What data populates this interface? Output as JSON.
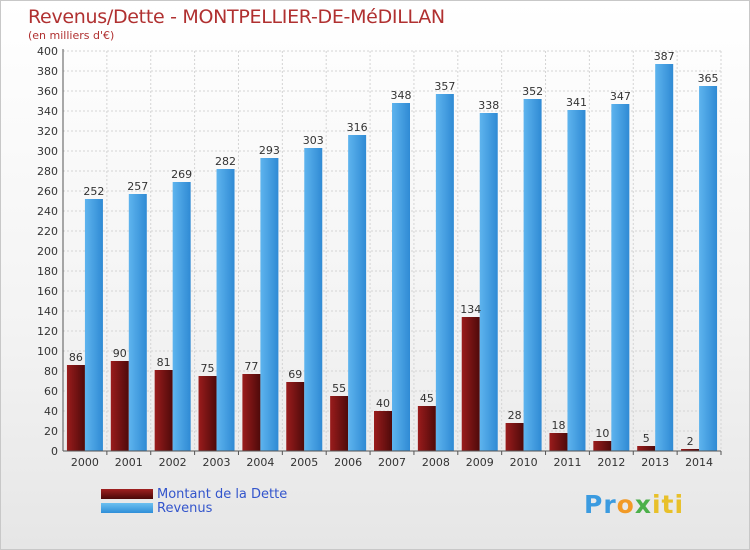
{
  "title": "Revenus/Dette - MONTPELLIER-DE-MéDILLAN",
  "subtitle": "(en milliers d'€)",
  "legend": {
    "debt_label": "Montant de la Dette",
    "revenue_label": "Revenus"
  },
  "logo": {
    "p1": "Pr",
    "p2": "o",
    "p3": "x",
    "p4": "iti"
  },
  "colors": {
    "debt": "#7a1515",
    "revenue": "#4aa3e6",
    "title": "#b03030",
    "legend_text": "#3355cc"
  },
  "chart_data": {
    "type": "bar",
    "title": "Revenus/Dette - MONTPELLIER-DE-MéDILLAN",
    "subtitle": "(en milliers d'€)",
    "xlabel": "",
    "ylabel": "",
    "ylim": [
      0,
      400
    ],
    "ytick_step": 20,
    "grid": true,
    "legend_position": "bottom-left",
    "categories": [
      "2000",
      "2001",
      "2002",
      "2003",
      "2004",
      "2005",
      "2006",
      "2007",
      "2008",
      "2009",
      "2010",
      "2011",
      "2012",
      "2013",
      "2014"
    ],
    "series": [
      {
        "name": "Montant de la Dette",
        "values": [
          86,
          90,
          81,
          75,
          77,
          69,
          55,
          40,
          45,
          134,
          28,
          18,
          10,
          5,
          2
        ]
      },
      {
        "name": "Revenus",
        "values": [
          252,
          257,
          269,
          282,
          293,
          303,
          316,
          348,
          357,
          338,
          352,
          341,
          347,
          387,
          365
        ]
      }
    ]
  }
}
